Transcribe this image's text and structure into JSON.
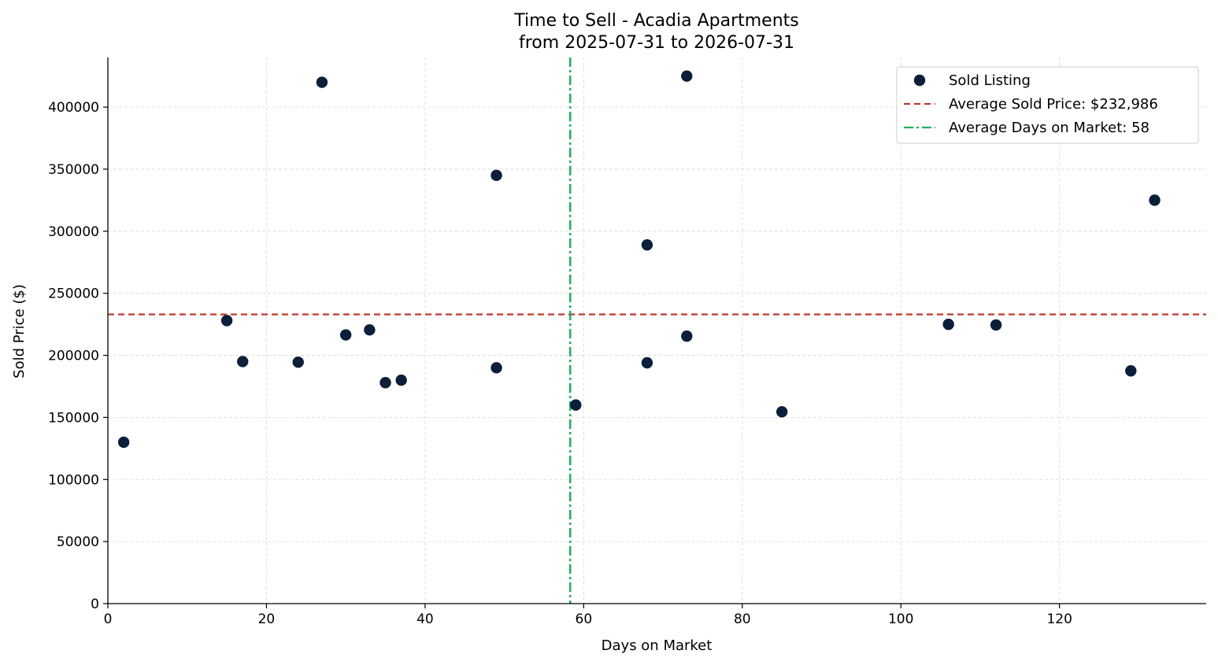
{
  "chart_data": {
    "type": "scatter",
    "title": "Time to Sell - Acadia Apartments",
    "subtitle": "from 2025-07-31 to 2026-07-31",
    "xlabel": "Days on Market",
    "ylabel": "Sold Price ($)",
    "xlim": [
      0,
      138.5
    ],
    "ylim": [
      0,
      440000
    ],
    "xticks": [
      0,
      20,
      40,
      60,
      80,
      100,
      120
    ],
    "yticks": [
      0,
      50000,
      100000,
      150000,
      200000,
      250000,
      300000,
      350000,
      400000
    ],
    "grid": true,
    "legend_position": "top-right",
    "series": [
      {
        "name": "Sold Listing",
        "color": "#0b1f3a",
        "points": [
          {
            "x": 2,
            "y": 130000
          },
          {
            "x": 15,
            "y": 228000
          },
          {
            "x": 17,
            "y": 195000
          },
          {
            "x": 24,
            "y": 194500
          },
          {
            "x": 27,
            "y": 420000
          },
          {
            "x": 30,
            "y": 216500
          },
          {
            "x": 33,
            "y": 220500
          },
          {
            "x": 35,
            "y": 178000
          },
          {
            "x": 37,
            "y": 180000
          },
          {
            "x": 49,
            "y": 345000
          },
          {
            "x": 49,
            "y": 190000
          },
          {
            "x": 59,
            "y": 160000
          },
          {
            "x": 68,
            "y": 289000
          },
          {
            "x": 68,
            "y": 194000
          },
          {
            "x": 73,
            "y": 425000
          },
          {
            "x": 73,
            "y": 215500
          },
          {
            "x": 85,
            "y": 154500
          },
          {
            "x": 106,
            "y": 225000
          },
          {
            "x": 112,
            "y": 224500
          },
          {
            "x": 129,
            "y": 187500
          },
          {
            "x": 132,
            "y": 325000
          }
        ]
      }
    ],
    "reference_lines": [
      {
        "name": "Average Sold Price: $232,986",
        "orientation": "horizontal",
        "value": 232986,
        "color": "#c0392b",
        "style": "dashed"
      },
      {
        "name": "Average Days on Market: 58",
        "orientation": "vertical",
        "value": 58.3,
        "color": "#27ae60",
        "style": "dashdot"
      }
    ]
  }
}
